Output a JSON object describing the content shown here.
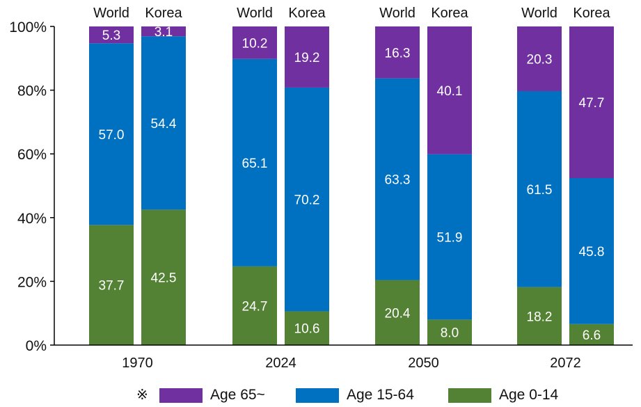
{
  "chart_data": {
    "type": "bar",
    "stacked": true,
    "percent": true,
    "groups": [
      "1970",
      "2024",
      "2050",
      "2072"
    ],
    "bars_per_group": [
      "World",
      "Korea"
    ],
    "yticks": [
      "0%",
      "20%",
      "40%",
      "60%",
      "80%",
      "100%"
    ],
    "ylim": [
      0,
      100
    ],
    "series": [
      {
        "name": "Age 0-14",
        "color": "#548235",
        "values": [
          [
            37.7,
            42.5
          ],
          [
            24.7,
            10.6
          ],
          [
            20.4,
            8.0
          ],
          [
            18.2,
            6.6
          ]
        ],
        "labels": [
          [
            "37.7",
            "42.5"
          ],
          [
            "24.7",
            "10.6"
          ],
          [
            "20.4",
            "8.0"
          ],
          [
            "18.2",
            "6.6"
          ]
        ]
      },
      {
        "name": "Age 15-64",
        "color": "#0070C0",
        "values": [
          [
            57.0,
            54.4
          ],
          [
            65.1,
            70.2
          ],
          [
            63.3,
            51.9
          ],
          [
            61.5,
            45.8
          ]
        ],
        "labels": [
          [
            "57.0",
            "54.4"
          ],
          [
            "65.1",
            "70.2"
          ],
          [
            "63.3",
            "51.9"
          ],
          [
            "61.5",
            "45.8"
          ]
        ]
      },
      {
        "name": "Age 65~",
        "color": "#7030A0",
        "values": [
          [
            5.3,
            3.1
          ],
          [
            10.2,
            19.2
          ],
          [
            16.3,
            40.1
          ],
          [
            20.3,
            47.7
          ]
        ],
        "labels": [
          [
            "5.3",
            "3.1"
          ],
          [
            "10.2",
            "19.2"
          ],
          [
            "16.3",
            "40.1"
          ],
          [
            "20.3",
            "47.7"
          ]
        ]
      }
    ]
  },
  "legend": {
    "mark": "※",
    "items": [
      {
        "label": "Age 65~",
        "color": "#7030A0"
      },
      {
        "label": "Age 15-64",
        "color": "#0070C0"
      },
      {
        "label": "Age 0-14",
        "color": "#548235"
      }
    ]
  }
}
